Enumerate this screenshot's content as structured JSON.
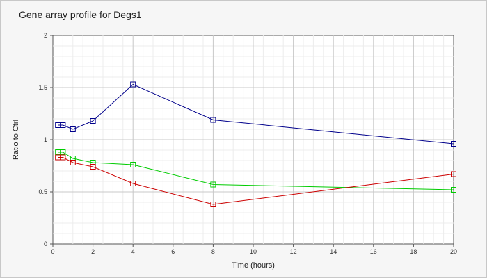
{
  "chart_data": {
    "type": "line",
    "title": "Gene array profile for Degs1",
    "xlabel": "Time (hours)",
    "ylabel": "Ratio to Ctrl",
    "xlim": [
      0,
      20
    ],
    "ylim": [
      0,
      2
    ],
    "xticks": [
      0,
      2,
      4,
      6,
      8,
      10,
      12,
      14,
      16,
      18,
      20
    ],
    "yticks": [
      0,
      0.5,
      1,
      1.5,
      2
    ],
    "ytick_labels": [
      "0",
      "0.5",
      "1",
      "1.5",
      "2"
    ],
    "grid": true,
    "legend": false,
    "marker": "square",
    "x": [
      0.25,
      0.5,
      1,
      2,
      4,
      8,
      20
    ],
    "series": [
      {
        "color": "#00008b",
        "values": [
          1.14,
          1.14,
          1.1,
          1.18,
          1.53,
          1.19,
          0.96
        ]
      },
      {
        "color": "#00cc00",
        "values": [
          0.88,
          0.88,
          0.82,
          0.78,
          0.76,
          0.57,
          0.52
        ]
      },
      {
        "color": "#cc0000",
        "values": [
          0.83,
          0.83,
          0.78,
          0.74,
          0.58,
          0.38,
          0.67
        ]
      }
    ]
  }
}
